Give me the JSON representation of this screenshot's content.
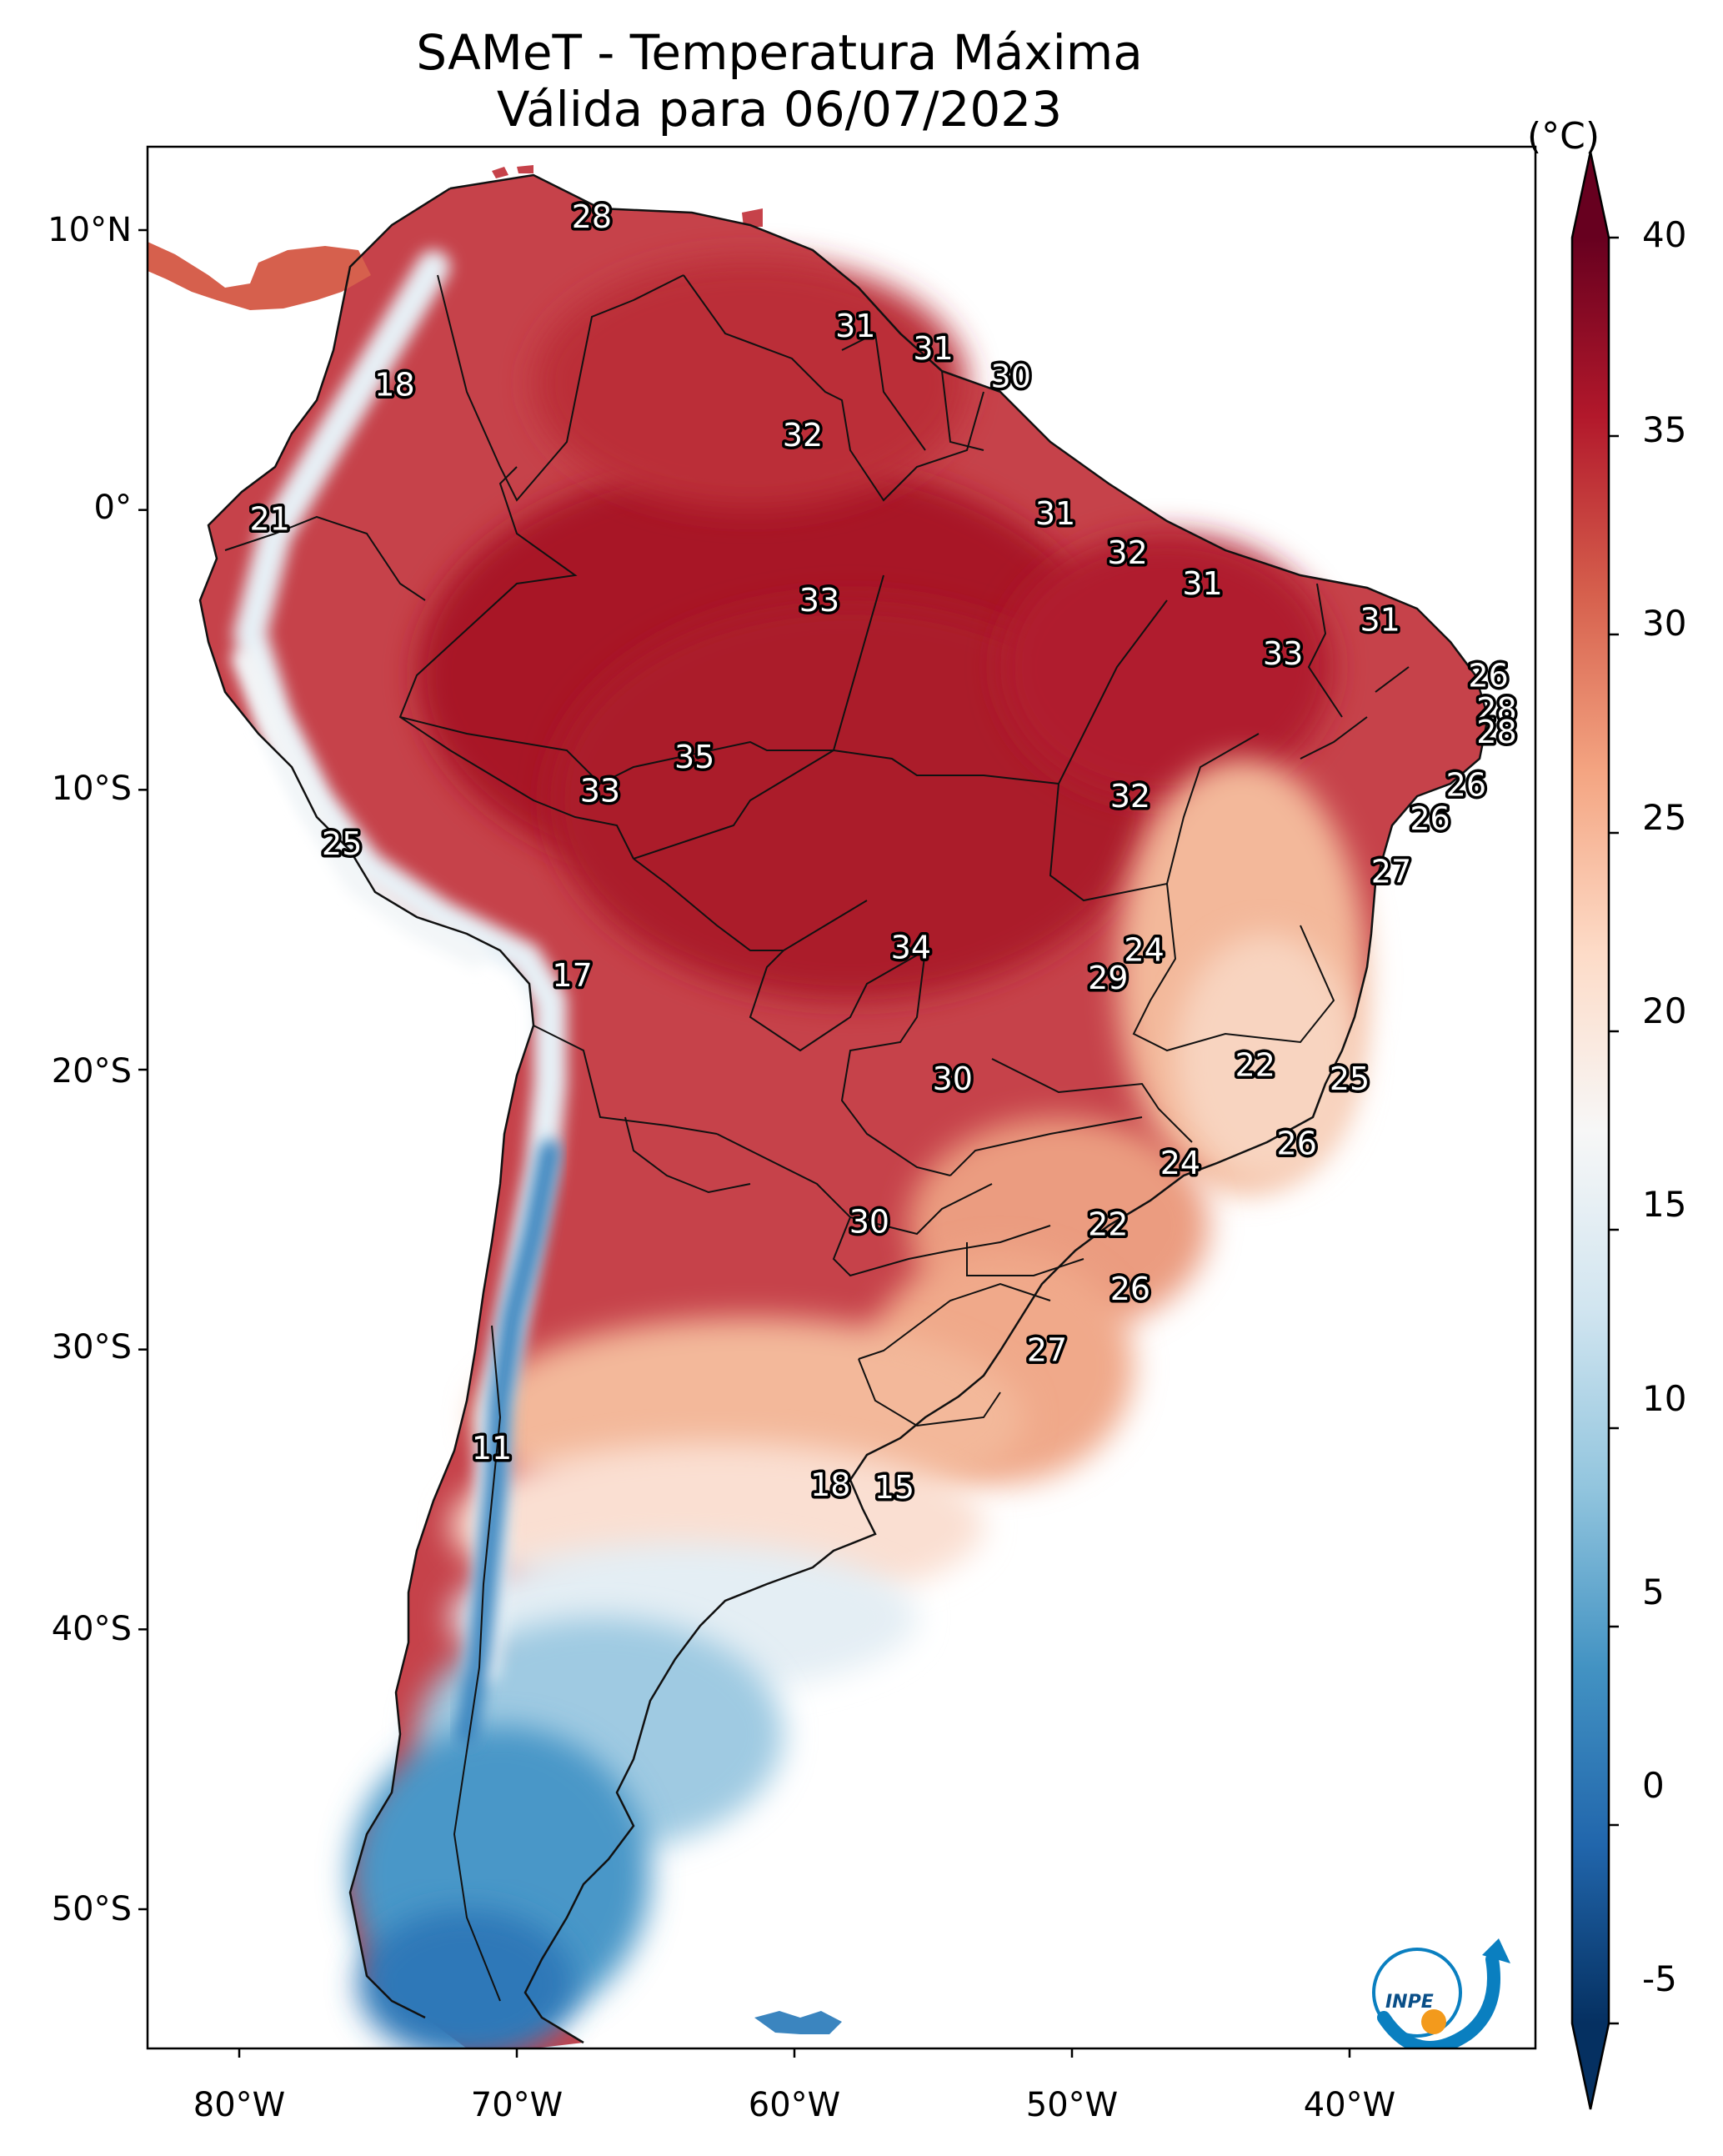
{
  "title": {
    "line1": "SAMeT - Temperatura Máxima",
    "line2": "Válida para 06/07/2023"
  },
  "axes": {
    "lat_labels": [
      "10°N",
      "0°",
      "10°S",
      "20°S",
      "30°S",
      "40°S",
      "50°S"
    ],
    "lon_labels": [
      "80°W",
      "70°W",
      "60°W",
      "50°W",
      "40°W"
    ]
  },
  "colorbar": {
    "unit": "(°C)",
    "min": -5,
    "max": 40,
    "ticks": [
      "40",
      "35",
      "30",
      "25",
      "20",
      "15",
      "10",
      "5",
      "0",
      "-5"
    ],
    "colors": [
      "#053061",
      "#2166ac",
      "#4393c3",
      "#92c5de",
      "#d1e5f0",
      "#f7f7f7",
      "#fddbc7",
      "#f4a582",
      "#d6604d",
      "#b2182b",
      "#67001f"
    ]
  },
  "contour_labels": [
    {
      "value": "28",
      "lon": -67.3,
      "lat": 10.5
    },
    {
      "value": "18",
      "lon": -74.4,
      "lat": 4.5
    },
    {
      "value": "31",
      "lon": -57.8,
      "lat": 6.6
    },
    {
      "value": "31",
      "lon": -55.0,
      "lat": 5.8
    },
    {
      "value": "30",
      "lon": -52.2,
      "lat": 4.8
    },
    {
      "value": "32",
      "lon": -59.7,
      "lat": 2.7
    },
    {
      "value": "21",
      "lon": -78.9,
      "lat": -0.3
    },
    {
      "value": "31",
      "lon": -50.6,
      "lat": -0.1
    },
    {
      "value": "32",
      "lon": -48.0,
      "lat": -1.5
    },
    {
      "value": "31",
      "lon": -45.3,
      "lat": -2.6
    },
    {
      "value": "33",
      "lon": -59.1,
      "lat": -3.2
    },
    {
      "value": "31",
      "lon": -38.9,
      "lat": -3.9
    },
    {
      "value": "33",
      "lon": -42.4,
      "lat": -5.1
    },
    {
      "value": "26",
      "lon": -35.0,
      "lat": -5.9
    },
    {
      "value": "28",
      "lon": -34.7,
      "lat": -7.1
    },
    {
      "value": "28",
      "lon": -34.7,
      "lat": -7.9
    },
    {
      "value": "35",
      "lon": -63.6,
      "lat": -8.8
    },
    {
      "value": "26",
      "lon": -35.8,
      "lat": -9.8
    },
    {
      "value": "33",
      "lon": -67.0,
      "lat": -10.0
    },
    {
      "value": "32",
      "lon": -47.9,
      "lat": -10.2
    },
    {
      "value": "26",
      "lon": -37.1,
      "lat": -11.0
    },
    {
      "value": "25",
      "lon": -76.3,
      "lat": -11.9
    },
    {
      "value": "27",
      "lon": -38.5,
      "lat": -12.9
    },
    {
      "value": "24",
      "lon": -47.4,
      "lat": -15.7
    },
    {
      "value": "34",
      "lon": -55.8,
      "lat": -15.6
    },
    {
      "value": "29",
      "lon": -48.7,
      "lat": -16.7
    },
    {
      "value": "17",
      "lon": -68.0,
      "lat": -16.6
    },
    {
      "value": "22",
      "lon": -43.4,
      "lat": -19.8
    },
    {
      "value": "30",
      "lon": -54.3,
      "lat": -20.3
    },
    {
      "value": "25",
      "lon": -40.0,
      "lat": -20.3
    },
    {
      "value": "26",
      "lon": -41.9,
      "lat": -22.6
    },
    {
      "value": "24",
      "lon": -46.1,
      "lat": -23.3
    },
    {
      "value": "30",
      "lon": -57.3,
      "lat": -25.4
    },
    {
      "value": "22",
      "lon": -48.7,
      "lat": -25.5
    },
    {
      "value": "26",
      "lon": -47.9,
      "lat": -27.8
    },
    {
      "value": "27",
      "lon": -50.9,
      "lat": -30.0
    },
    {
      "value": "11",
      "lon": -70.9,
      "lat": -33.5
    },
    {
      "value": "18",
      "lon": -58.7,
      "lat": -34.8
    },
    {
      "value": "15",
      "lon": -56.4,
      "lat": -34.9
    }
  ],
  "logo": {
    "text": "INPE",
    "arc_color": "#0a7fc0",
    "dot_color": "#f39a1c"
  }
}
